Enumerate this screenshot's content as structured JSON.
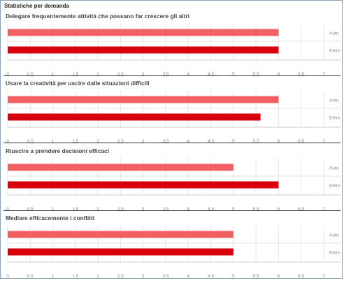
{
  "page": {
    "title": "Statistiche per domanda"
  },
  "colors": {
    "auto": "#f16062",
    "etero": "#d9000d",
    "grid": "#e6e6e6",
    "axis_text": "#888888"
  },
  "chart_data": [
    {
      "type": "bar",
      "orientation": "horizontal",
      "title": "Delegare frequentemente attività che possano far crescere gli altri",
      "categories": [
        "Auto",
        "Etero"
      ],
      "values": [
        6,
        6
      ],
      "xlim": [
        0,
        7
      ],
      "xticks": [
        "0",
        "0.5",
        "1",
        "1.5",
        "2",
        "2.5",
        "3",
        "3.5",
        "4",
        "4.5",
        "5",
        "5.5",
        "6",
        "6.5",
        "7"
      ],
      "grid": true
    },
    {
      "type": "bar",
      "orientation": "horizontal",
      "title": "Usare la creatività per uscire dalle situazioni difficili",
      "categories": [
        "Auto",
        "Etero"
      ],
      "values": [
        6,
        5.6
      ],
      "xlim": [
        0,
        7
      ],
      "xticks": [
        "0",
        "0.5",
        "1",
        "1.5",
        "2",
        "2.5",
        "3",
        "3.5",
        "4",
        "4.5",
        "5",
        "5.5",
        "6",
        "6.5",
        "7"
      ],
      "grid": true
    },
    {
      "type": "bar",
      "orientation": "horizontal",
      "title": "Riuscire a prendere decisioni efficaci",
      "categories": [
        "Auto",
        "Etero"
      ],
      "values": [
        5,
        6
      ],
      "xlim": [
        0,
        7
      ],
      "xticks": [
        "0",
        "0.5",
        "1",
        "1.5",
        "2",
        "2.5",
        "3",
        "3.5",
        "4",
        "4.5",
        "5",
        "5.5",
        "6",
        "6.5",
        "7"
      ],
      "grid": true
    },
    {
      "type": "bar",
      "orientation": "horizontal",
      "title": "Mediare efficacemente i conflitti",
      "categories": [
        "Auto",
        "Etero"
      ],
      "values": [
        5,
        5
      ],
      "xlim": [
        0,
        7
      ],
      "xticks": [
        "0",
        "0.5",
        "1",
        "1.5",
        "2",
        "2.5",
        "3",
        "3.5",
        "4",
        "4.5",
        "5",
        "5.5",
        "6",
        "6.5",
        "7"
      ],
      "grid": true
    }
  ]
}
